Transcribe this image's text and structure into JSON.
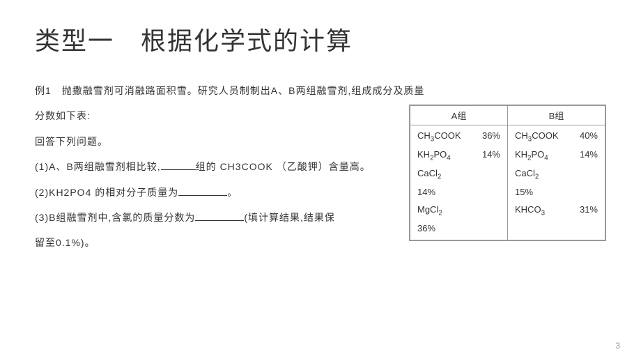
{
  "title": "类型一　根据化学式的计算",
  "example_label": "例1　抛撒融雪剂可消融路面积雪。研究人员制制出A、B两组融雪剂,组成成分及质量分数如下表:",
  "answer_prompt": "回答下列问题。",
  "q1_pre": "(1)A、B两组融雪剂相比较,",
  "q1_post": "组的 CH3COOK （乙酸钾）含量高。",
  "q2_pre": "(2)KH2PO4 的相对分子质量为",
  "q2_post": "。",
  "q3_pre": "(3)B组融雪剂中,含氯的质量分数为",
  "q3_post": "(填计算结果,结果保",
  "q3_line2": "留至0.1%)。",
  "table": {
    "header_a": "A组",
    "header_b": "B组",
    "rows_a": [
      {
        "formula_html": "CH<sub>3</sub>COOK",
        "percent": "36%"
      },
      {
        "formula_html": "KH<sub>2</sub>PO<sub>4</sub>",
        "percent": "14%"
      },
      {
        "formula_html": "CaCl<sub>2</sub>",
        "percent": ""
      },
      {
        "formula_html": "14%",
        "percent": ""
      },
      {
        "formula_html": "MgCl<sub>2</sub>",
        "percent": ""
      },
      {
        "formula_html": "36%",
        "percent": ""
      }
    ],
    "rows_b": [
      {
        "formula_html": "CH<sub>3</sub>COOK",
        "percent": "40%"
      },
      {
        "formula_html": "KH<sub>2</sub>PO<sub>4</sub>",
        "percent": "14%"
      },
      {
        "formula_html": "CaCl<sub>2</sub>",
        "percent": ""
      },
      {
        "formula_html": "15%",
        "percent": ""
      },
      {
        "formula_html": "KHCO<sub>3</sub>",
        "percent": "31%"
      }
    ]
  },
  "page_number": "3"
}
